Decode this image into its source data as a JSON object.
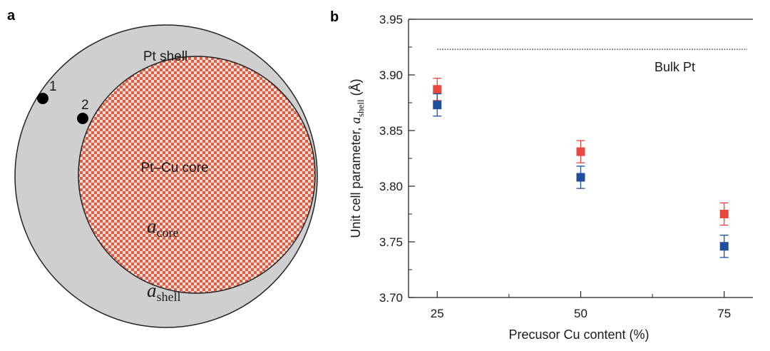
{
  "panel_a": {
    "letter": "a",
    "shell_label": "Pt shell",
    "core_label": "Pt–Cu core",
    "core_param_symbol": "a",
    "core_param_sub": "core",
    "shell_param_symbol": "a",
    "shell_param_sub": "shell",
    "site_labels": [
      "1",
      "2"
    ],
    "colors": {
      "shell": "#cfcfcf",
      "core_base": "#f6d9cf",
      "core_checker": "#d9604a",
      "outline": "#222222",
      "site_dot": "#000000"
    }
  },
  "panel_b": {
    "letter": "b",
    "bulk_label": "Bulk Pt"
  },
  "chart_data": {
    "type": "scatter",
    "title": "",
    "xlabel": "Precusor Cu content (%)",
    "ylabel_text": "Unit cell parameter, ",
    "ylabel_symbol": "a",
    "ylabel_sub": "shell",
    "ylabel_unit": " (Å)",
    "x_ticks": [
      "25",
      "50",
      "75"
    ],
    "y_ticks": [
      "3.70",
      "3.75",
      "3.80",
      "3.85",
      "3.90",
      "3.95"
    ],
    "xlim": [
      20,
      80
    ],
    "ylim": [
      3.7,
      3.95
    ],
    "grid": false,
    "series": [
      {
        "color": "#e8483f",
        "marker": "square",
        "x": [
          25,
          50,
          75
        ],
        "y": [
          3.887,
          3.831,
          3.775
        ],
        "err": [
          0.01,
          0.01,
          0.01
        ]
      },
      {
        "color": "#1f4e9c",
        "marker": "square",
        "x": [
          25,
          50,
          75
        ],
        "y": [
          3.873,
          3.808,
          3.746
        ],
        "err": [
          0.01,
          0.01,
          0.01
        ]
      }
    ],
    "reference_line": {
      "label": "Bulk Pt",
      "y": 3.923,
      "style": "dotted",
      "x_start": 25,
      "x_end": 79
    }
  }
}
